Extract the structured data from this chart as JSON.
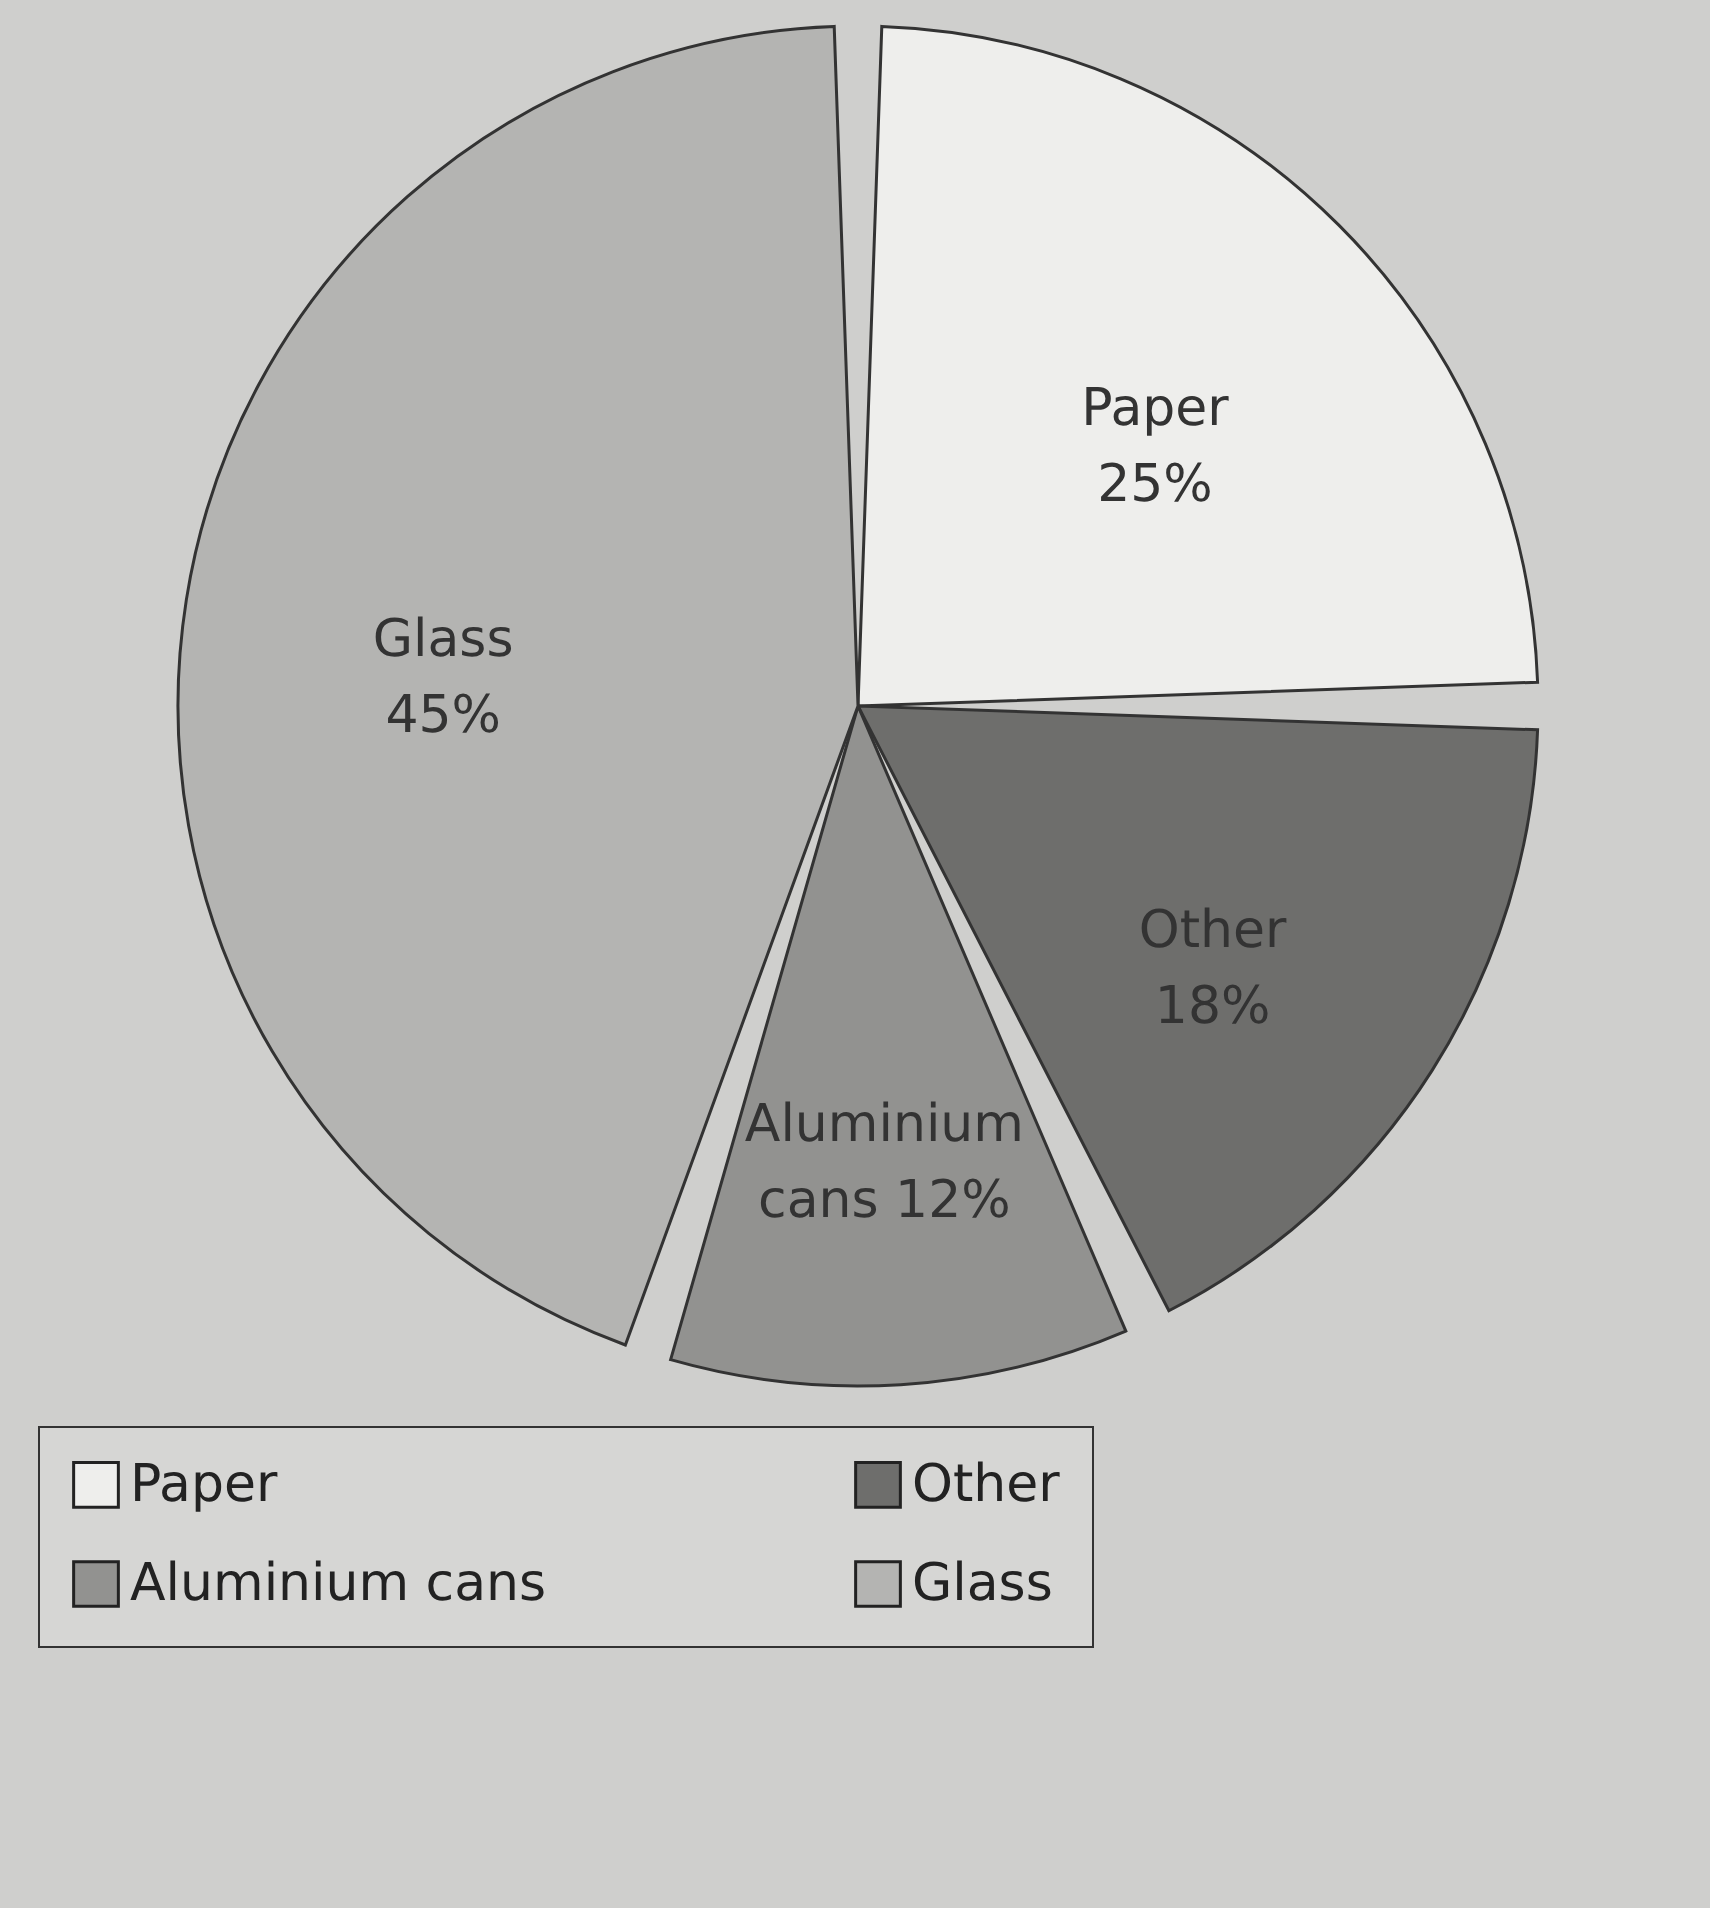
{
  "chart_data": {
    "type": "pie",
    "categories": [
      "Paper",
      "Other",
      "Aluminium cans",
      "Glass"
    ],
    "values": [
      25,
      18,
      12,
      45
    ],
    "value_labels": [
      "25%",
      "18%",
      "12%",
      "45%"
    ],
    "colors": [
      "#eeeeec",
      "#6e6e6c",
      "#929290",
      "#b4b4b2"
    ],
    "legend": "bottom"
  }
}
